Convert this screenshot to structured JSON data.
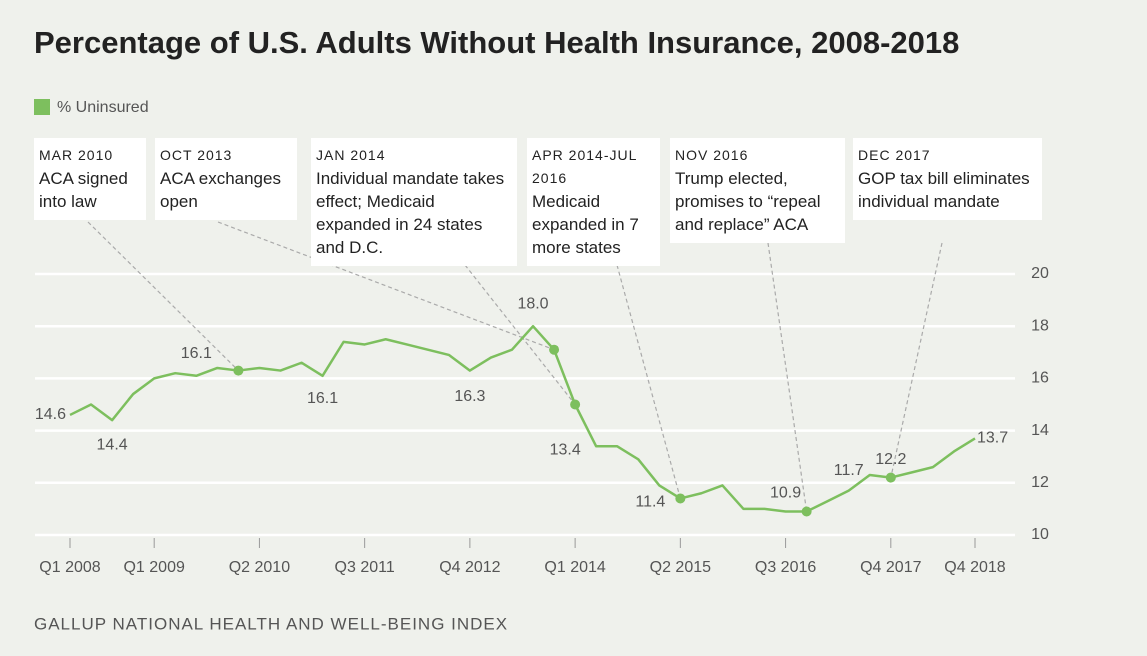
{
  "title": "Percentage of U.S. Adults Without Health Insurance, 2008-2018",
  "source": "GALLUP NATIONAL HEALTH AND WELL-BEING INDEX",
  "chart_data": {
    "type": "line",
    "categories": [
      "Q1 2008",
      null,
      null,
      null,
      "Q1 2009",
      null,
      null,
      null,
      null,
      "Q2 2010",
      null,
      null,
      null,
      null,
      "Q3 2011",
      null,
      null,
      null,
      null,
      "Q4 2012",
      null,
      null,
      null,
      null,
      "Q1 2014",
      null,
      null,
      null,
      null,
      "Q2 2015",
      null,
      null,
      null,
      null,
      "Q3 2016",
      null,
      null,
      null,
      null,
      "Q4 2017",
      null,
      null,
      null,
      "Q4 2018"
    ],
    "series": [
      {
        "name": "% Uninsured",
        "color": "#7dbf5e",
        "values": [
          14.6,
          15.0,
          14.4,
          15.4,
          16.0,
          16.2,
          16.1,
          16.4,
          16.3,
          16.4,
          16.3,
          16.6,
          16.1,
          17.4,
          17.3,
          17.5,
          17.3,
          17.1,
          16.9,
          16.3,
          16.8,
          17.1,
          18.0,
          17.1,
          15.0,
          13.4,
          13.4,
          12.9,
          11.9,
          11.4,
          11.6,
          11.9,
          11.0,
          11.0,
          10.9,
          10.9,
          11.3,
          11.7,
          12.3,
          12.2,
          12.4,
          12.6,
          13.2,
          13.7
        ],
        "value_labels": [
          "14.6",
          null,
          "14.4",
          null,
          null,
          null,
          "16.1",
          null,
          null,
          null,
          null,
          null,
          "16.1",
          null,
          null,
          null,
          null,
          null,
          null,
          "16.3",
          null,
          null,
          "18.0",
          null,
          null,
          "13.4",
          null,
          null,
          null,
          "11.4",
          null,
          null,
          null,
          null,
          "10.9",
          null,
          null,
          "11.7",
          null,
          "12.2",
          null,
          null,
          null,
          "13.7"
        ]
      }
    ],
    "ylim": [
      10,
      20
    ],
    "yticks": [
      10,
      12,
      14,
      16,
      18,
      20
    ],
    "grid": true,
    "annotations": [
      {
        "date": "MAR 2010",
        "text": "ACA signed into law"
      },
      {
        "date": "OCT 2013",
        "text": "ACA exchanges open"
      },
      {
        "date": "JAN 2014",
        "text": "Individual mandate takes effect; Medicaid expanded in 24 states and D.C."
      },
      {
        "date": "APR 2014-JUL 2016",
        "text": "Medicaid expanded in 7 more states"
      },
      {
        "date": "NOV 2016",
        "text": "Trump elected, promises to “repeal and replace” ACA"
      },
      {
        "date": "DEC 2017",
        "text": "GOP tax bill eliminates individual mandate"
      }
    ]
  }
}
